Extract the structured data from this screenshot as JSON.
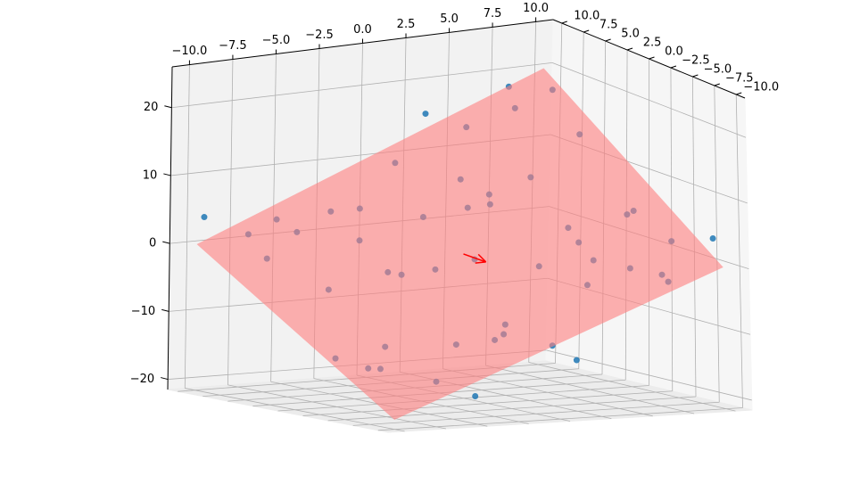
{
  "chart_data": {
    "type": "scatter3d",
    "xlim": [
      -11,
      11
    ],
    "ylim": [
      -11,
      11
    ],
    "zlim": [
      -21.5,
      26
    ],
    "xticks": [
      {
        "value": -10,
        "label": "−10.0"
      },
      {
        "value": -7.5,
        "label": "−7.5"
      },
      {
        "value": -5,
        "label": "−5.0"
      },
      {
        "value": -2.5,
        "label": "−2.5"
      },
      {
        "value": 0,
        "label": "0.0"
      },
      {
        "value": 2.5,
        "label": "2.5"
      },
      {
        "value": 5,
        "label": "5.0"
      },
      {
        "value": 7.5,
        "label": "7.5"
      },
      {
        "value": 10,
        "label": "10.0"
      }
    ],
    "yticks": [
      {
        "value": 10,
        "label": "10.0"
      },
      {
        "value": 7.5,
        "label": "7.5"
      },
      {
        "value": 5,
        "label": "5.0"
      },
      {
        "value": 2.5,
        "label": "2.5"
      },
      {
        "value": 0,
        "label": "0.0"
      },
      {
        "value": -2.5,
        "label": "−2.5"
      },
      {
        "value": -5,
        "label": "−5.0"
      },
      {
        "value": -7.5,
        "label": "−7.5"
      },
      {
        "value": -10,
        "label": "−10.0"
      }
    ],
    "zticks": [
      {
        "value": -20,
        "label": "−20"
      },
      {
        "value": -10,
        "label": "−10"
      },
      0,
      10,
      20
    ],
    "grid": true,
    "color": "#1f77b4",
    "x": [
      -8.2,
      -6.5,
      -3.1,
      0.4,
      2.7,
      5.9,
      8.8,
      -9.4,
      -4.7,
      1.8,
      4.3,
      7.1,
      9.6,
      -7.3,
      -2.2,
      3.5,
      6.4,
      -5.6,
      -0.8,
      8.1,
      -9.1,
      -1.5,
      2.2,
      6.9,
      -6.8,
      0.9,
      4.8,
      9.2,
      -3.9,
      -8.7,
      5.3,
      1.1,
      -4.4,
      7.7,
      -2.9,
      3.9,
      -7.9,
      0.1,
      6.1,
      -5.1,
      8.5,
      -1.2,
      2.9,
      -9.7,
      4.1,
      -6.1,
      9.9,
      -0.3,
      5.6,
      -3.4
    ],
    "y": [
      7.9,
      -3.2,
      5.4,
      -8.6,
      9.1,
      -1.7,
      3.6,
      -6.4,
      -9.3,
      2.8,
      -5.5,
      8.3,
      -0.9,
      1.2,
      -7.1,
      6.7,
      -9.8,
      9.6,
      -2.6,
      -7.4,
      4.4,
      0.3,
      -4.1,
      7.2,
      -8.9,
      5.9,
      1.5,
      -5.8,
      -0.4,
      -1.9,
      9.5,
      -9.9,
      3.1,
      -3.7,
      8.8,
      -6.9,
      -5.1,
      7.5,
      -0.2,
      -8.1,
      6.1,
      -6.3,
      2.4,
      9.8,
      4.7,
      6.6,
      -9.1,
      -4.9,
      -7.8,
      1.9
    ],
    "z": [
      1.8,
      -11.5,
      5.3,
      -10.7,
      16.0,
      1.1,
      13.9,
      -13.2,
      -17.4,
      5.3,
      -3.4,
      19.0,
      4.6,
      -4.2,
      -9.9,
      7.4,
      -0.5,
      2.7,
      0.4,
      -2.9,
      -0.3,
      -2.1,
      -0.7,
      16.5,
      -14.9,
      2.9,
      9.6,
      2.3,
      -2.1,
      -13.3,
      13.2,
      -12.6,
      1.8,
      5.7,
      3.5,
      1.0,
      -14.0,
      10.3,
      2.6,
      -9.7,
      19.2,
      -9.5,
      5.7,
      4.0,
      5.9,
      2.1,
      4.0,
      -8.7,
      -0.2,
      -2.7
    ],
    "plane": {
      "x_coef": 1,
      "y_coef": 1,
      "intercept": 0,
      "color": "#ff7f7f",
      "opacity": 0.6
    },
    "arrow": {
      "start": [
        0,
        0,
        0
      ],
      "end": [
        3,
        3,
        -3
      ],
      "color": "#ff0000"
    }
  }
}
